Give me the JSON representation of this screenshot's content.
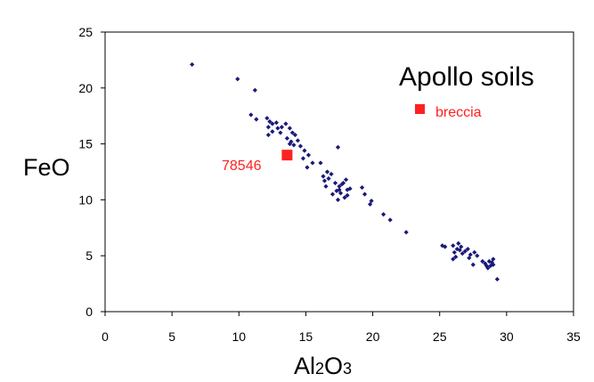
{
  "chart_data": {
    "type": "scatter",
    "title": "Apollo soils",
    "xlabel": "Al2O3",
    "ylabel": "FeO",
    "xlim": [
      0,
      35
    ],
    "ylim": [
      0,
      25
    ],
    "x_ticks": [
      "0",
      "5",
      "10",
      "15",
      "20",
      "25",
      "30",
      "35"
    ],
    "y_ticks": [
      "0",
      "5",
      "10",
      "15",
      "20",
      "25"
    ],
    "grid": false,
    "series": [
      {
        "name": "",
        "marker": "diamond",
        "color": "#1a1a7a",
        "points": [
          [
            6.5,
            22.1
          ],
          [
            9.9,
            20.8
          ],
          [
            11.2,
            19.8
          ],
          [
            10.9,
            17.6
          ],
          [
            11.3,
            17.2
          ],
          [
            12.1,
            17.3
          ],
          [
            12.3,
            17.0
          ],
          [
            12.5,
            16.8
          ],
          [
            12.8,
            16.9
          ],
          [
            12.2,
            16.5
          ],
          [
            12.9,
            16.4
          ],
          [
            12.5,
            16.1
          ],
          [
            13.2,
            16.5
          ],
          [
            13.1,
            16.0
          ],
          [
            12.2,
            15.8
          ],
          [
            13.5,
            16.8
          ],
          [
            13.8,
            16.4
          ],
          [
            14.0,
            16.0
          ],
          [
            14.2,
            15.8
          ],
          [
            13.6,
            15.5
          ],
          [
            13.9,
            15.2
          ],
          [
            14.4,
            15.3
          ],
          [
            14.1,
            14.9
          ],
          [
            14.6,
            14.8
          ],
          [
            13.8,
            15.0
          ],
          [
            14.9,
            14.4
          ],
          [
            15.2,
            14.0
          ],
          [
            14.8,
            13.7
          ],
          [
            15.5,
            13.3
          ],
          [
            15.1,
            12.9
          ],
          [
            17.4,
            14.7
          ],
          [
            16.1,
            13.3
          ],
          [
            16.6,
            12.5
          ],
          [
            16.3,
            12.1
          ],
          [
            16.9,
            12.3
          ],
          [
            16.4,
            11.7
          ],
          [
            16.7,
            11.9
          ],
          [
            16.5,
            11.2
          ],
          [
            17.2,
            11.5
          ],
          [
            17.5,
            11.2
          ],
          [
            17.8,
            11.5
          ],
          [
            18.0,
            11.8
          ],
          [
            17.3,
            10.8
          ],
          [
            17.6,
            10.6
          ],
          [
            18.1,
            10.9
          ],
          [
            17.9,
            10.2
          ],
          [
            17.4,
            10.0
          ],
          [
            17.0,
            10.5
          ],
          [
            18.3,
            11.0
          ],
          [
            18.1,
            10.4
          ],
          [
            17.7,
            11.4
          ],
          [
            17.5,
            10.9
          ],
          [
            19.2,
            11.1
          ],
          [
            19.4,
            10.5
          ],
          [
            19.9,
            9.9
          ],
          [
            19.8,
            9.6
          ],
          [
            20.8,
            8.7
          ],
          [
            21.3,
            8.2
          ],
          [
            22.5,
            7.1
          ],
          [
            25.2,
            5.9
          ],
          [
            25.4,
            5.8
          ],
          [
            26.0,
            5.9
          ],
          [
            26.3,
            5.6
          ],
          [
            26.1,
            5.3
          ],
          [
            26.5,
            5.5
          ],
          [
            26.7,
            5.2
          ],
          [
            26.2,
            4.9
          ],
          [
            26.9,
            5.4
          ],
          [
            27.1,
            5.6
          ],
          [
            26.4,
            6.1
          ],
          [
            26.6,
            5.8
          ],
          [
            27.3,
            5.1
          ],
          [
            27.6,
            5.3
          ],
          [
            27.2,
            4.8
          ],
          [
            27.8,
            5.0
          ],
          [
            27.5,
            4.2
          ],
          [
            28.2,
            4.5
          ],
          [
            28.4,
            4.3
          ],
          [
            28.5,
            4.1
          ],
          [
            28.7,
            4.5
          ],
          [
            28.9,
            4.4
          ],
          [
            29.0,
            4.7
          ],
          [
            28.8,
            4.1
          ],
          [
            28.6,
            3.9
          ],
          [
            29.0,
            4.2
          ],
          [
            26.0,
            4.7
          ],
          [
            29.3,
            2.9
          ]
        ]
      },
      {
        "name": "breccia",
        "marker": "square",
        "color": "#ff2020",
        "points": [
          [
            13.6,
            14.0
          ]
        ]
      }
    ],
    "annotations": [
      {
        "text": "78546",
        "x": 13.6,
        "y": 14.0,
        "color": "#ff2020"
      }
    ],
    "legend": {
      "placement": "top-right",
      "entries": [
        {
          "label": "breccia",
          "color": "#ff2020"
        }
      ]
    }
  }
}
